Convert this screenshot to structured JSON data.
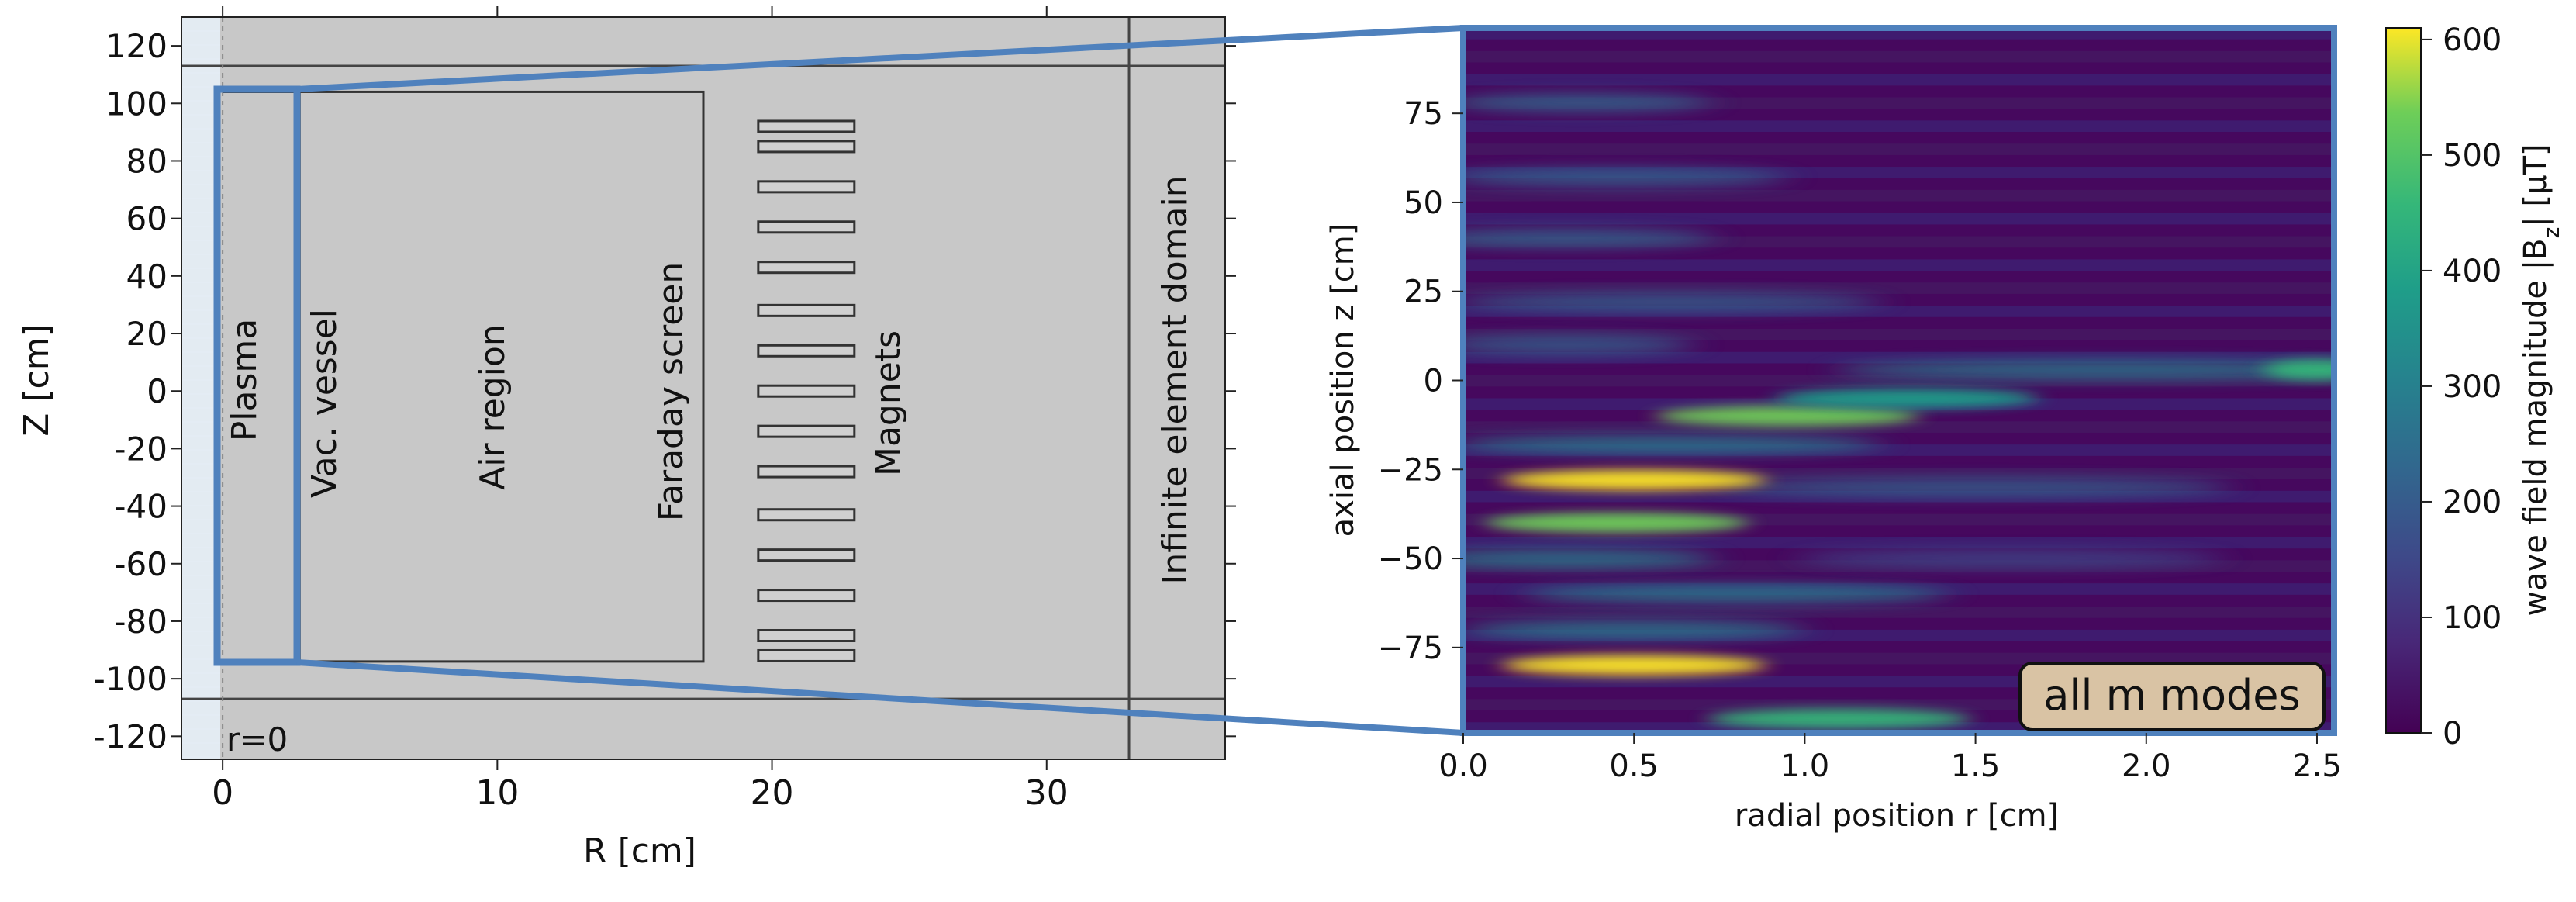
{
  "chart_data": [
    {
      "type": "diagram",
      "xlabel": "R [cm]",
      "ylabel": "Z [cm]",
      "xlim": [
        -1.5,
        36.5
      ],
      "ylim": [
        -128,
        130
      ],
      "xticks": [
        0,
        10,
        20,
        30
      ],
      "yticks": [
        120,
        100,
        80,
        60,
        40,
        20,
        0,
        -20,
        -40,
        -60,
        -80,
        -100,
        -120
      ],
      "regions": [
        {
          "name": "Plasma",
          "r": [
            0,
            2.5
          ],
          "z": [
            -94,
            104
          ]
        },
        {
          "name": "Vac. vessel",
          "r": [
            2.5,
            2.8
          ],
          "z": [
            -94,
            104
          ]
        },
        {
          "name": "Air region",
          "r": [
            2.8,
            17.5
          ],
          "z": [
            -94,
            104
          ]
        },
        {
          "name": "Faraday screen",
          "r": [
            17.5,
            17.5
          ],
          "z": [
            -94,
            104
          ]
        },
        {
          "name": "Magnets",
          "r": [
            19.5,
            23
          ],
          "z": [
            -86,
            96
          ]
        },
        {
          "name": "Infinite element domain",
          "r": [
            33,
            36.5
          ],
          "z": [
            -128,
            130
          ]
        }
      ],
      "magnet_z": [
        92,
        85,
        71,
        57,
        43,
        28,
        14,
        0,
        -14,
        -28,
        -43,
        -57,
        -71,
        -85,
        -92
      ],
      "axis_label": "r=0"
    },
    {
      "type": "heatmap",
      "xlabel": "radial position r [cm]",
      "ylabel": "axial position z [cm]",
      "xlim": [
        0,
        2.55
      ],
      "ylim": [
        -99,
        99
      ],
      "xticks": [
        0.0,
        0.5,
        1.0,
        1.5,
        2.0,
        2.5
      ],
      "yticks": [
        75,
        50,
        25,
        0,
        -25,
        -50,
        -75
      ],
      "colorbar_label": "wave field magnitude |B",
      "colorbar_sub": "z",
      "colorbar_unit": "| [µT]",
      "colorbar_ticks": [
        0,
        100,
        200,
        300,
        400,
        500,
        600
      ],
      "colorbar_range": [
        0,
        610
      ],
      "annotation": "all m modes",
      "hotspots": [
        {
          "r": 0.5,
          "z": -28,
          "value": 600
        },
        {
          "r": 0.5,
          "z": -80,
          "value": 580
        },
        {
          "r": 0.45,
          "z": -40,
          "value": 560
        },
        {
          "r": 0.95,
          "z": -10,
          "value": 560
        },
        {
          "r": 1.1,
          "z": -95,
          "value": 420
        },
        {
          "r": 1.3,
          "z": -5,
          "value": 380
        },
        {
          "r": 2.5,
          "z": 3,
          "value": 470
        }
      ]
    }
  ]
}
